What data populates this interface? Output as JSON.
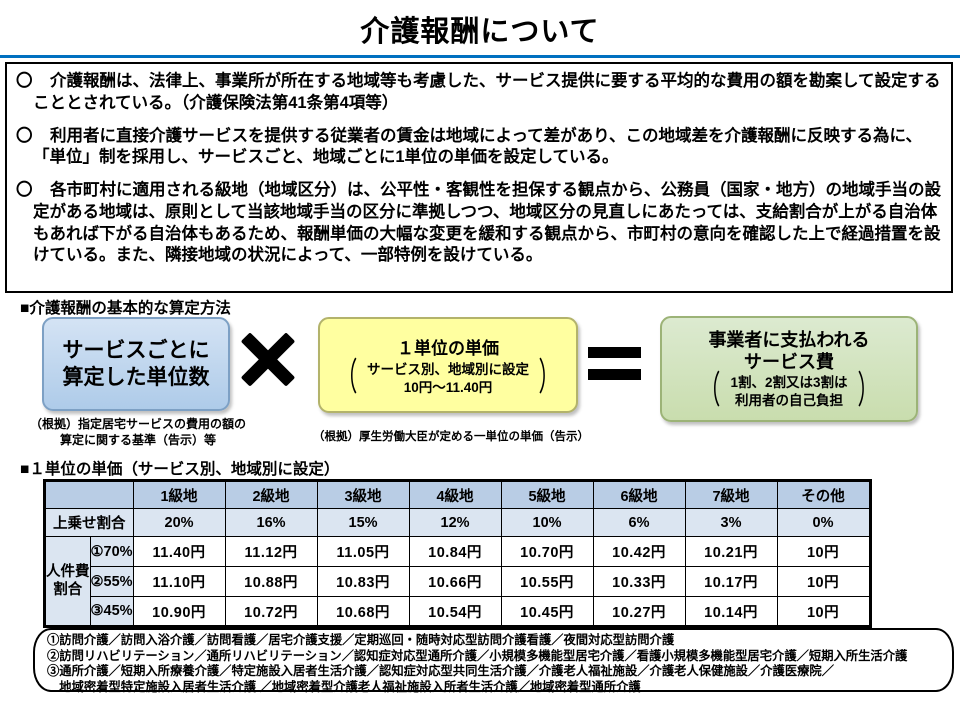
{
  "title": "介護報酬について",
  "overview": {
    "bullets": [
      {
        "marker": "〇",
        "text": "介護報酬は、法律上、事業所が所在する地域等も考慮した、サービス提供に要する平均的な費用の額を勘案して設定することとされている。（介護保険法第41条第4項等）"
      },
      {
        "marker": "〇",
        "text": "利用者に直接介護サービスを提供する従業者の賃金は地域によって差があり、この地域差を介護報酬に反映する為に、「単位」制を採用し、サービスごと、地域ごとに1単位の単価を設定している。"
      },
      {
        "marker": "〇",
        "text": "各市町村に適用される級地（地域区分）は、公平性・客観性を担保する観点から、公務員（国家・地方）の地域手当の設定がある地域は、原則として当該地域手当の区分に準拠しつつ、地域区分の見直しにあたっては、支給割合が上がる自治体もあれば下がる自治体もあるため、報酬単価の大幅な変更を緩和する観点から、市町村の意向を確認した上で経過措置を設けている。また、隣接地域の状況によって、一部特例を設けている。"
      }
    ]
  },
  "formula": {
    "heading": "■介護報酬の基本的な算定方法",
    "bracket_open": "（",
    "bracket_close": "）",
    "multiply_icon": "✖",
    "equals_icon": "＝",
    "unit_count_box": {
      "line1": "サービスごとに",
      "line2": "算定した単位数",
      "caption_line1": "（根拠）指定居宅サービスの費用の額の",
      "caption_line2": "算定に関する基準（告示）等"
    },
    "unit_price_box": {
      "title": "１単位の単価",
      "bracket_line1": "サービス別、地域別に設定",
      "bracket_line2": "10円～11.40円",
      "caption": "（根拠）厚生労働大臣が定める一単位の単価（告示）"
    },
    "service_fee_box": {
      "line1": "事業者に支払われる",
      "line2": "サービス費",
      "bracket_line1": "1割、2割又は3割は",
      "bracket_line2": "利用者の自己負担"
    }
  },
  "price_table": {
    "heading": "■１単位の単価（サービス別、地域別に設定）",
    "col_headers": [
      "1級地",
      "2級地",
      "3級地",
      "4級地",
      "5級地",
      "6級地",
      "7級地",
      "その他"
    ],
    "surcharge_label": "上乗せ割合",
    "surcharge_values": [
      "20%",
      "16%",
      "15%",
      "12%",
      "10%",
      "6%",
      "3%",
      "0%"
    ],
    "row_group_label_line1": "人件費",
    "row_group_label_line2": "割合",
    "rows": [
      {
        "label": "①70%",
        "values": [
          "11.40円",
          "11.12円",
          "11.05円",
          "10.84円",
          "10.70円",
          "10.42円",
          "10.21円",
          "10円"
        ]
      },
      {
        "label": "②55%",
        "values": [
          "11.10円",
          "10.88円",
          "10.83円",
          "10.66円",
          "10.55円",
          "10.33円",
          "10.17円",
          "10円"
        ]
      },
      {
        "label": "③45%",
        "values": [
          "10.90円",
          "10.72円",
          "10.68円",
          "10.54円",
          "10.45円",
          "10.27円",
          "10.14円",
          "10円"
        ]
      }
    ]
  },
  "notes": {
    "lines": [
      "①訪問介護／訪問入浴介護／訪問看護／居宅介護支援／定期巡回・随時対応型訪問介護看護／夜間対応型訪問介護",
      "②訪問リハビリテーション／通所リハビリテーション／認知症対応型通所介護／小規模多機能型居宅介護／看護小規模多機能型居宅介護／短期入所生活介護",
      "③通所介護／短期入所療養介護／特定施設入居者生活介護／認知症対応型共同生活介護／介護老人福祉施設／介護老人保健施設／介護医療院／",
      "　地域密着型特定施設入居者生活介護 ／地域密着型介護老人福祉施設入所者生活介護／地域密着型通所介護"
    ]
  },
  "colors": {
    "title_rule": "#0070c0",
    "unit_count_box_fill": "#b9d3ee",
    "unit_count_box_border": "#7da0c4",
    "unit_price_box_fill": "#ffffa0",
    "unit_price_box_border": "#b3b36b",
    "service_fee_box_fill": "#d3e3bd",
    "service_fee_box_border": "#9cb377",
    "table_header_bg": "#b9cde5",
    "table_subrow_bg": "#dbe5f1"
  }
}
